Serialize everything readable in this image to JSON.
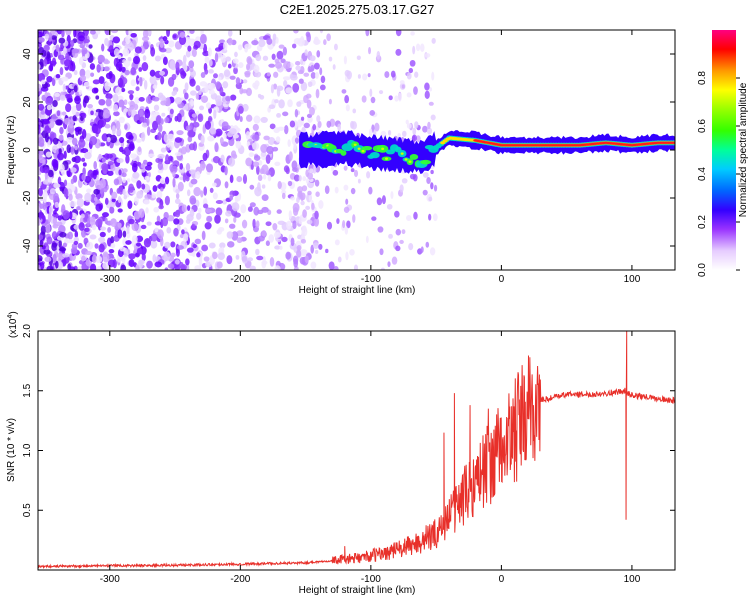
{
  "figure_title": "C2E1.2025.275.03.17.G27",
  "colors": {
    "snr_line": "#e8302a",
    "axis": "#000000",
    "background": "#ffffff"
  },
  "chart_data": [
    {
      "type": "heatmap",
      "title": "C2E1.2025.275.03.17.G27",
      "xlabel": "Height of straight line (km)",
      "ylabel": "Frequency (Hz)",
      "xlim": [
        -355,
        133
      ],
      "ylim": [
        -50,
        50
      ],
      "x_ticks": [
        -300,
        -200,
        -100,
        0,
        100
      ],
      "x_tick_labels": [
        "-300",
        "-200",
        "-100",
        "0",
        "100"
      ],
      "y_ticks": [
        -40,
        -20,
        0,
        20,
        40
      ],
      "y_tick_labels": [
        "-40",
        "-20",
        "0",
        "20",
        "40"
      ],
      "colorbar": {
        "label": "Normalized spectral amplitude",
        "range": [
          0,
          1
        ],
        "ticks": [
          0,
          0.2,
          0.4,
          0.6,
          0.8
        ],
        "tick_labels": [
          "0.0",
          "0.2",
          "0.4",
          "0.6",
          "0.8"
        ]
      },
      "ridge": {
        "description_points_x": [
          -160,
          -140,
          -120,
          -100,
          -80,
          -60,
          -40,
          -20,
          0,
          20,
          40,
          60,
          80,
          100,
          120,
          133
        ],
        "description_points_y": [
          0,
          0,
          1,
          -1,
          -2,
          -3,
          5,
          4,
          2,
          2,
          2,
          2,
          3,
          2,
          3,
          3
        ],
        "peak_amplitude_x_range": [
          -20,
          133
        ]
      }
    },
    {
      "type": "line",
      "xlabel": "Height of straight line (km)",
      "ylabel": "SNR (10 * v/v)",
      "y_multiplier_label": "(x10",
      "y_multiplier_exp": "4",
      "y_multiplier_close": ")",
      "xlim": [
        -355,
        133
      ],
      "ylim": [
        0,
        2.0
      ],
      "x_ticks": [
        -300,
        -200,
        -100,
        0,
        100
      ],
      "x_tick_labels": [
        "-300",
        "-200",
        "-100",
        "0",
        "100"
      ],
      "y_ticks": [
        0.5,
        1.0,
        1.5,
        2.0
      ],
      "y_tick_labels": [
        "0.5",
        "1.0",
        "1.5",
        "2.0"
      ],
      "series": [
        {
          "name": "SNR",
          "trend_x": [
            -355,
            -250,
            -150,
            -130,
            -110,
            -90,
            -70,
            -50,
            -40,
            -30,
            -20,
            -10,
            0,
            10,
            20,
            30,
            50,
            70,
            90,
            95,
            100,
            110,
            120,
            133
          ],
          "trend_y": [
            0.03,
            0.04,
            0.06,
            0.08,
            0.1,
            0.14,
            0.2,
            0.3,
            0.45,
            0.6,
            0.75,
            0.9,
            1.0,
            1.15,
            1.3,
            1.42,
            1.47,
            1.47,
            1.49,
            1.5,
            1.46,
            1.45,
            1.43,
            1.42
          ],
          "spikes": [
            {
              "x": -36,
              "y": 1.48
            },
            {
              "x": -44,
              "y": 1.15
            },
            {
              "x": -24,
              "y": 1.38
            },
            {
              "x": -10,
              "y": 1.35
            },
            {
              "x": -120,
              "y": 0.2
            },
            {
              "x": 96,
              "y": 2.0
            },
            {
              "x": 95.5,
              "y": 0.42
            }
          ]
        }
      ]
    }
  ]
}
